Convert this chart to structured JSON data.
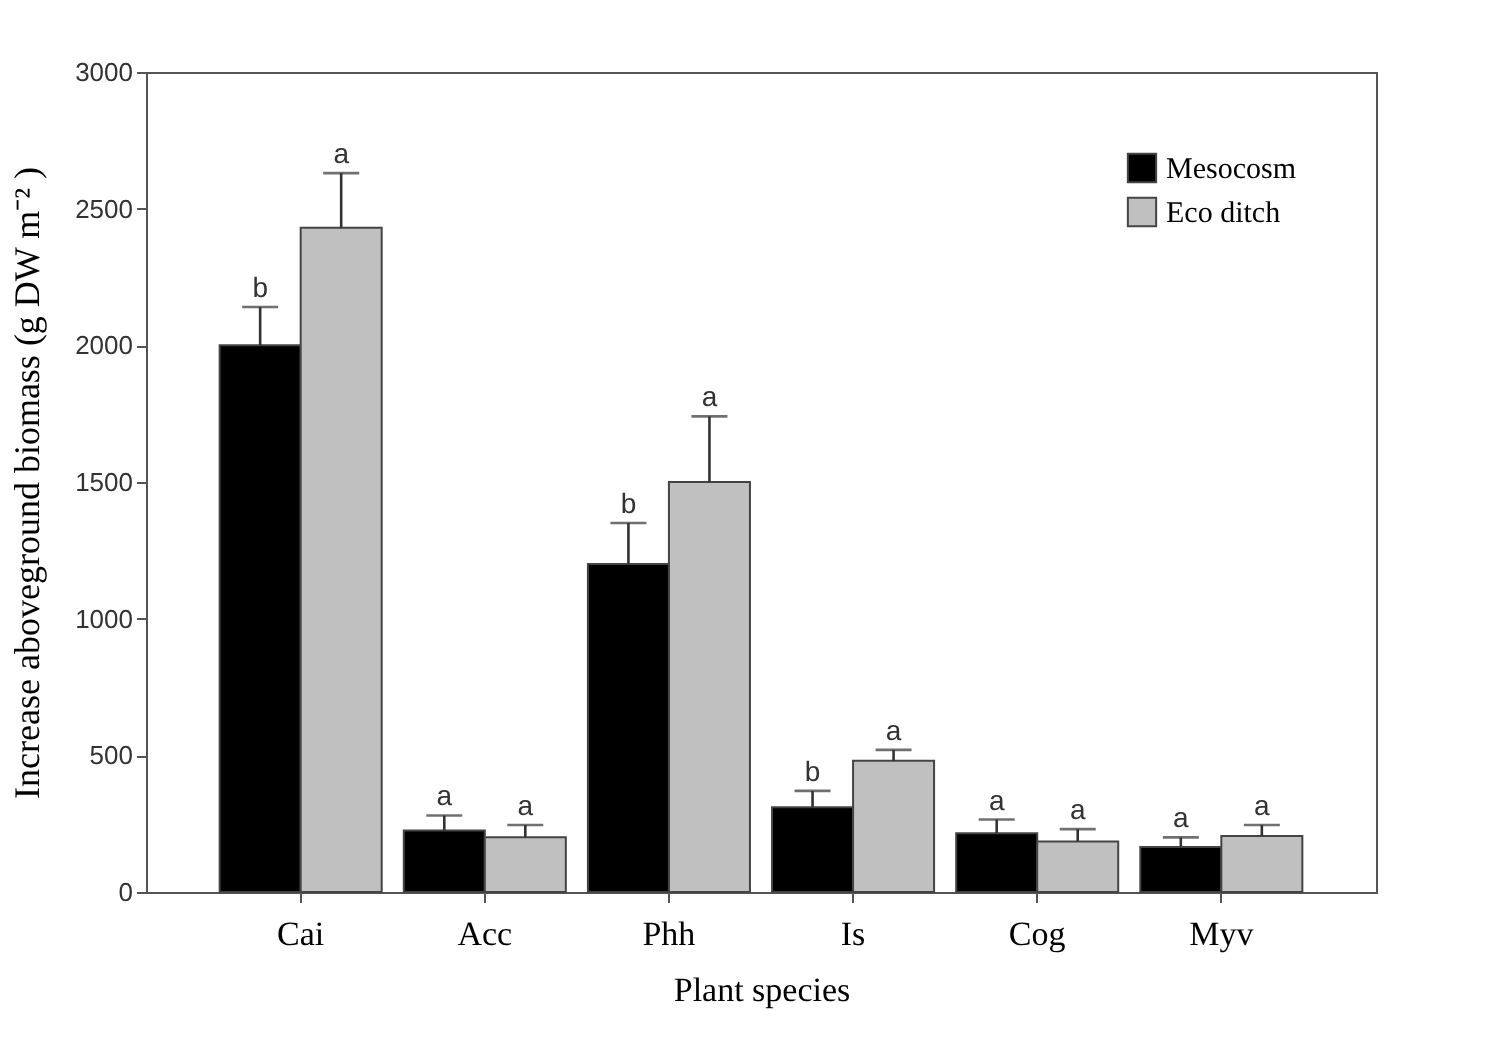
{
  "chart_data": {
    "type": "bar",
    "xlabel": "Plant species",
    "ylabel": "Increase aboveground biomass (g DW m⁻² )",
    "categories": [
      "Cai",
      "Acc",
      "Phh",
      "Is",
      "Cog",
      "Myv"
    ],
    "series": [
      {
        "name": "Mesocosm",
        "color": "#000000",
        "values": [
          2000,
          225,
          1200,
          310,
          215,
          165
        ],
        "errors": [
          140,
          55,
          150,
          60,
          50,
          35
        ]
      },
      {
        "name": "Eco ditch",
        "color": "#c0c0c0",
        "values": [
          2430,
          200,
          1500,
          480,
          185,
          205
        ],
        "errors": [
          200,
          45,
          240,
          40,
          45,
          40
        ]
      }
    ],
    "annotations": [
      "b",
      "a",
      "a",
      "a",
      "b",
      "a",
      "b",
      "a",
      "a",
      "a",
      "a",
      "a"
    ],
    "ylim": [
      0,
      3000
    ],
    "yticks": [
      0,
      500,
      1000,
      1500,
      2000,
      2500,
      3000
    ],
    "grid": false,
    "legend": "top right"
  }
}
